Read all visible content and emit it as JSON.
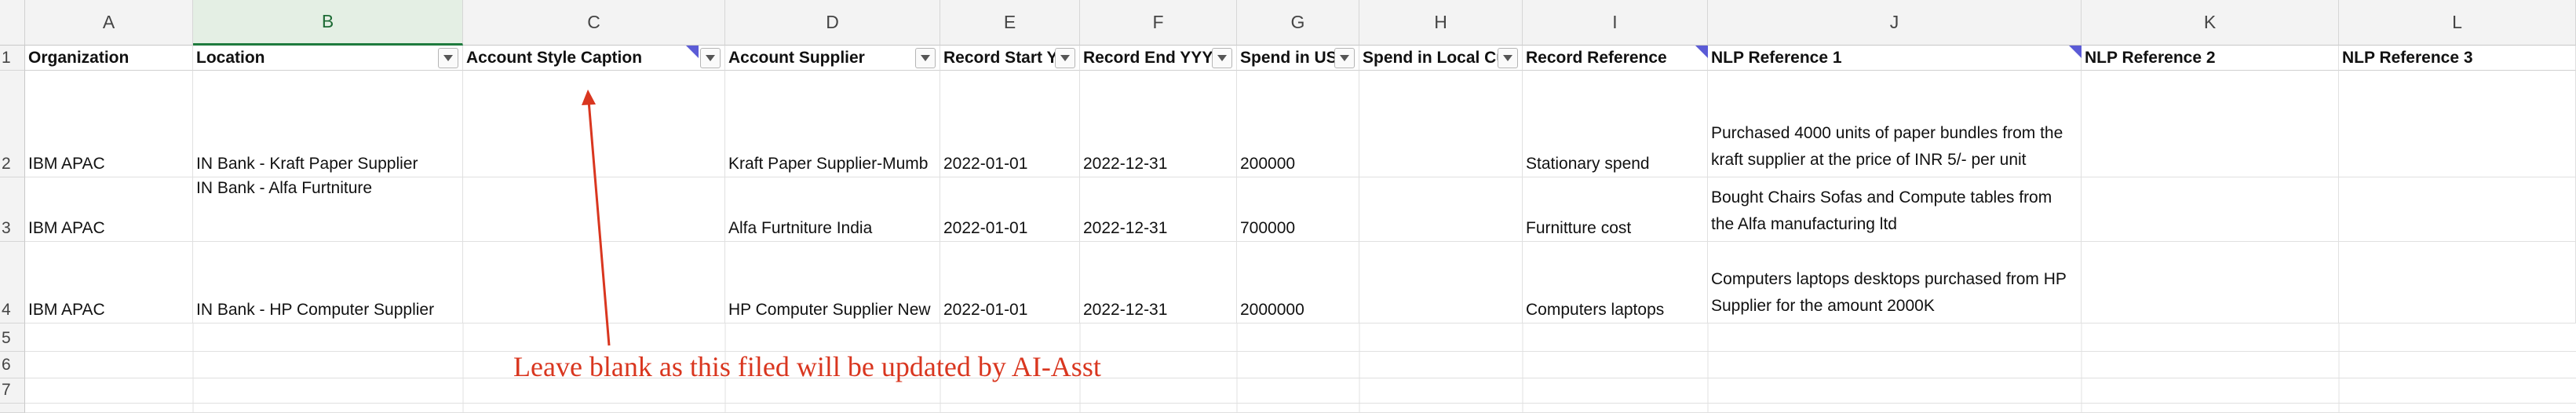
{
  "columns": [
    "A",
    "B",
    "C",
    "D",
    "E",
    "F",
    "G",
    "H",
    "I",
    "J",
    "K",
    "L"
  ],
  "rows": [
    "1",
    "2",
    "3",
    "4",
    "5",
    "6",
    "7",
    ""
  ],
  "headers": {
    "a": "Organization",
    "b": "Location",
    "c": "Account Style Caption",
    "d": "Account Supplier",
    "e": "Record Start Y",
    "f": "Record End YYYY",
    "g": "Spend in US",
    "h": "Spend in Local Cu",
    "i": "Record Reference",
    "j": "NLP Reference 1",
    "k": "NLP Reference 2",
    "l": "NLP Reference 3"
  },
  "data_rows": [
    {
      "a": "IBM APAC",
      "b": "IN Bank - Kraft Paper Supplier",
      "c": "",
      "d": "Kraft Paper Supplier-Mumb",
      "e": "2022-01-01",
      "f": "2022-12-31",
      "g": "200000",
      "h": "",
      "i": "Stationary spend",
      "j": "Purchased 4000 units of paper bundles from the kraft supplier at the price of  INR 5/- per unit",
      "k": "",
      "l": ""
    },
    {
      "a": "IBM APAC",
      "b": "IN Bank - Alfa Furtniture",
      "c": "",
      "d": "Alfa Furtniture India",
      "e": "2022-01-01",
      "f": "2022-12-31",
      "g": "700000",
      "h": "",
      "i": "Furnitture cost",
      "j": "Bought Chairs Sofas and Compute tables from the Alfa manufacturing ltd",
      "k": "",
      "l": ""
    },
    {
      "a": "IBM APAC",
      "b": "IN Bank - HP Computer Supplier",
      "c": "",
      "d": "HP Computer Supplier New",
      "e": "2022-01-01",
      "f": "2022-12-31",
      "g": "2000000",
      "h": "",
      "i": "Computers laptops",
      "j": "Computers laptops desktops purchased from HP Supplier for the amount 2000K",
      "k": "",
      "l": ""
    }
  ],
  "annotation": {
    "text": "Leave blank as this filed will be updated by AI-Asst",
    "color": "#d9361f"
  },
  "colors": {
    "selected_column": "#1e7b3e",
    "comment_marker": "#5b5bd6",
    "header_bg": "#f3f3f3"
  }
}
